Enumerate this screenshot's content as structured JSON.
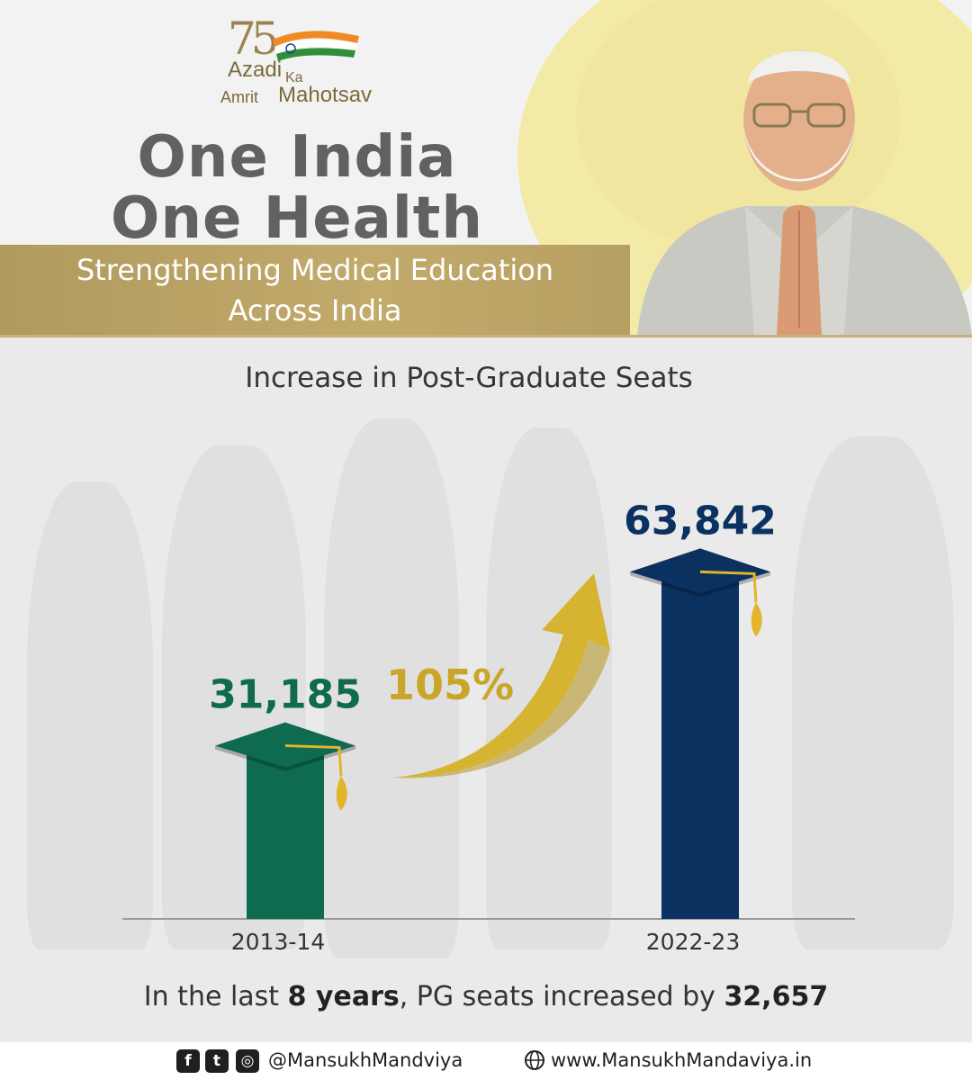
{
  "logo": {
    "number": "75",
    "line1": "Azadi",
    "connector": "Ka",
    "line2a": "Amrit",
    "line2b": "Mahotsav"
  },
  "header": {
    "title_line1": "One India",
    "title_line2": "One Health",
    "subtitle_line1": "Strengthening Medical Education",
    "subtitle_line2": "Across India"
  },
  "colors": {
    "gold": "#c2aa6b",
    "green_bar": "#0e6b4f",
    "navy_bar": "#0b3161",
    "arrow_gold": "#d6b431",
    "headline_gray": "#616161"
  },
  "chart_data": {
    "type": "bar",
    "title": "Increase in Post-Graduate Seats",
    "categories": [
      "2013-14",
      "2022-23"
    ],
    "values": [
      31185,
      63842
    ],
    "value_labels": [
      "31,185",
      "63,842"
    ],
    "bar_colors": [
      "#0e6b4f",
      "#0b3161"
    ],
    "ylim": [
      0,
      70000
    ],
    "grid": false,
    "xlabel": "",
    "ylabel": "",
    "annotation": "105%"
  },
  "summary": {
    "prefix": "In the last ",
    "years": "8 years",
    "middle": ", PG seats increased by ",
    "increase": "32,657"
  },
  "footer": {
    "social_icons": [
      "facebook-icon",
      "twitter-icon",
      "instagram-icon"
    ],
    "handle": "@MansukhMandviya",
    "website": "www.MansukhMandaviya.in"
  }
}
